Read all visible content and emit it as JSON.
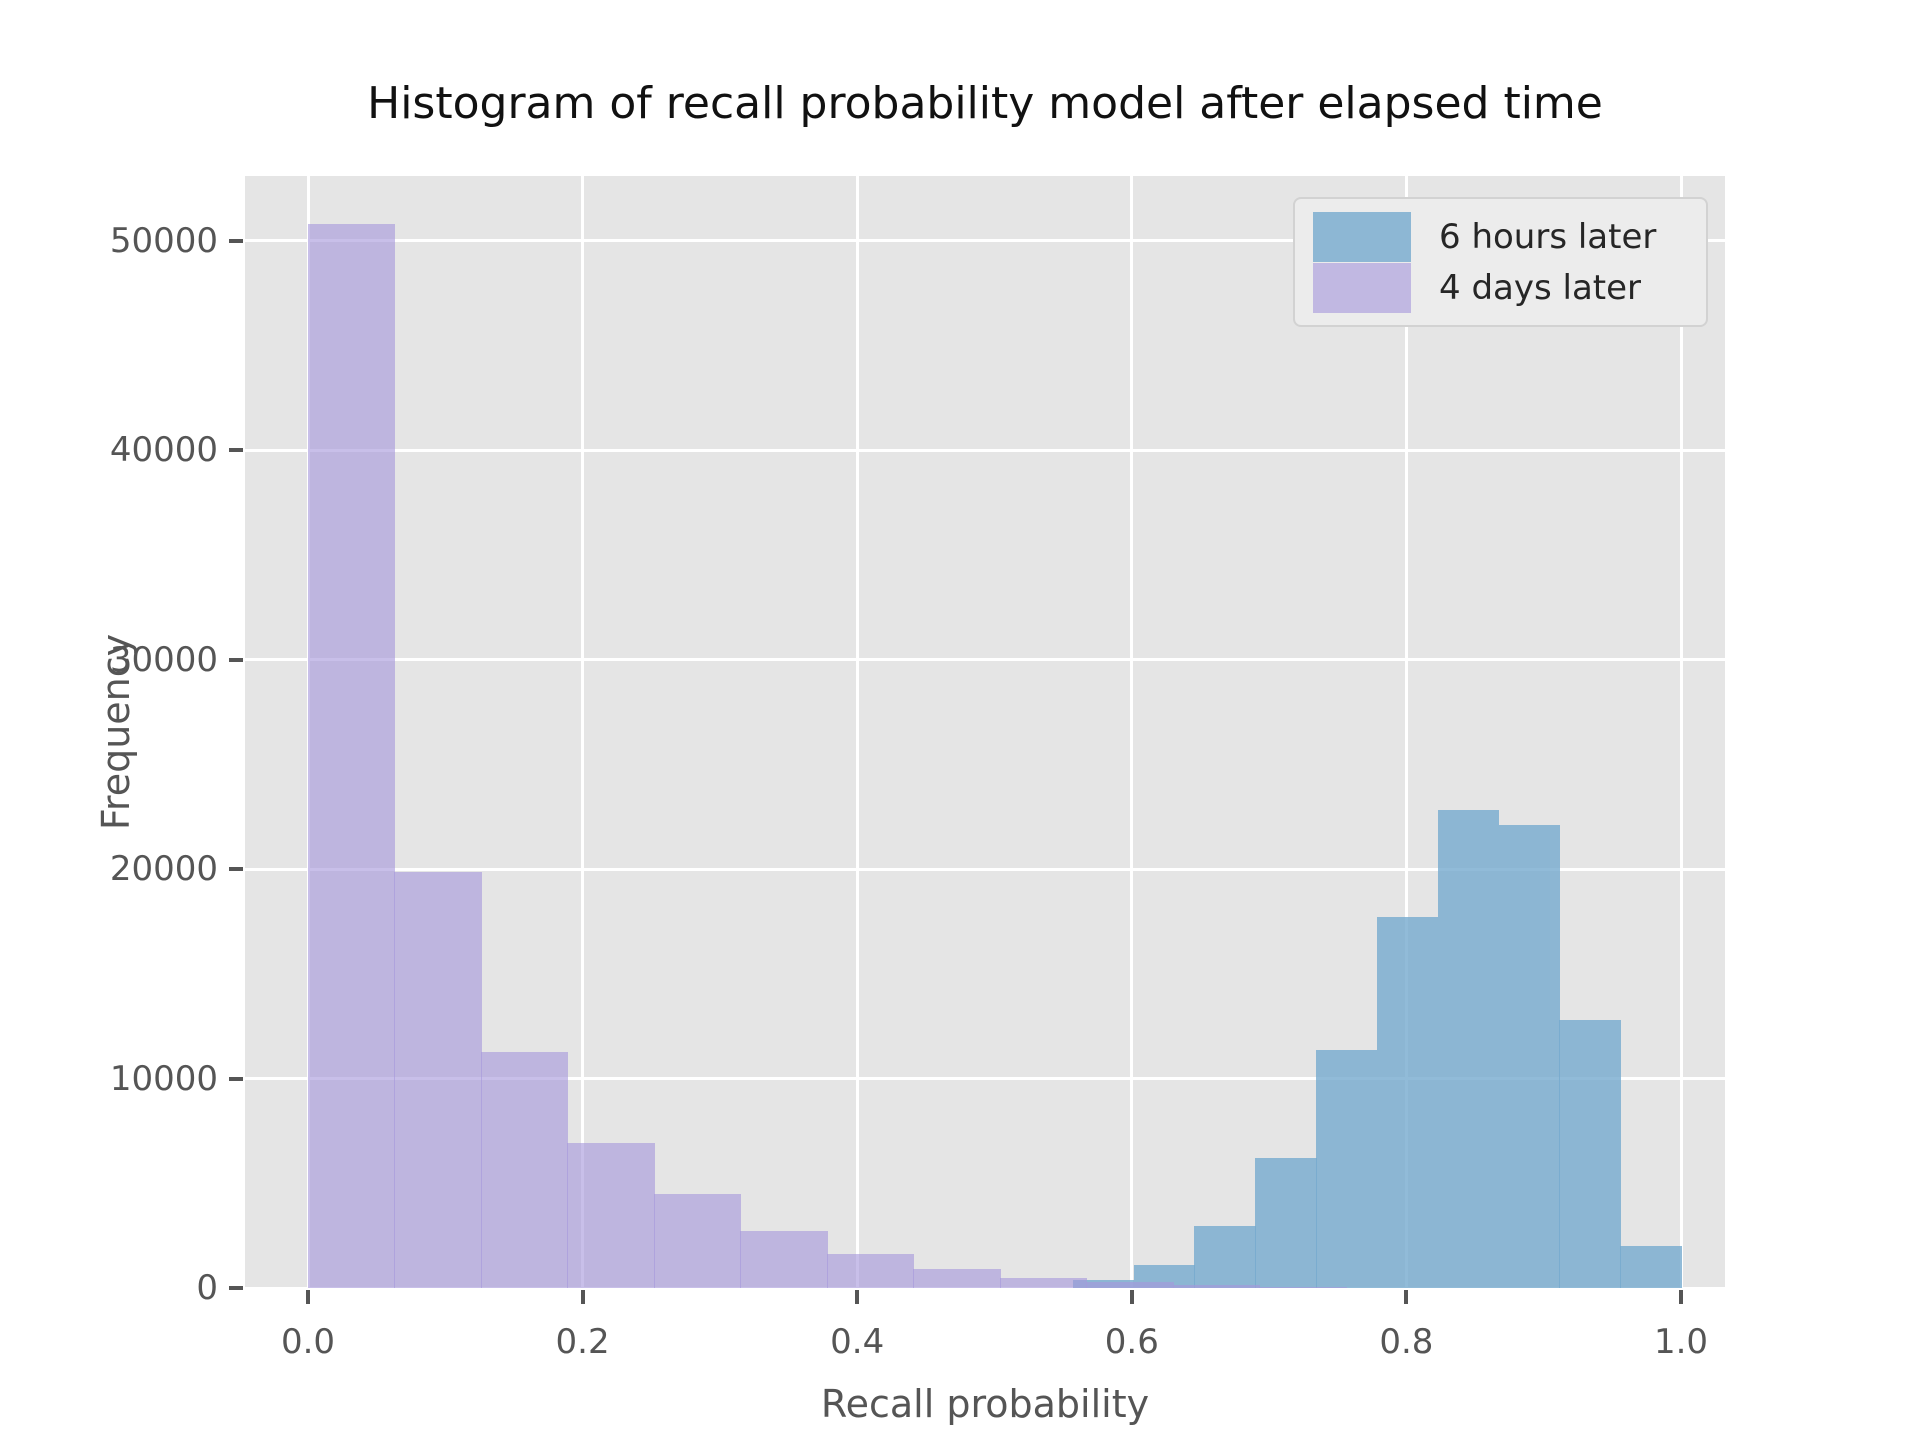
{
  "title": "Histogram of recall probability model after elapsed time",
  "xlabel": "Recall probability",
  "ylabel": "Frequency",
  "legend": {
    "entries": [
      {
        "label": "6 hours later",
        "color": "rgba(118,170,206,0.8)"
      },
      {
        "label": "4 days later",
        "color": "rgba(166,152,220,0.62)"
      }
    ]
  },
  "axes": {
    "xticks": [
      {
        "label": "0.0",
        "value": 0.0
      },
      {
        "label": "0.2",
        "value": 0.2
      },
      {
        "label": "0.4",
        "value": 0.4
      },
      {
        "label": "0.6",
        "value": 0.6
      },
      {
        "label": "0.8",
        "value": 0.8
      },
      {
        "label": "1.0",
        "value": 1.0
      }
    ],
    "yticks": [
      {
        "label": "0",
        "value": 0
      },
      {
        "label": "10000",
        "value": 10000
      },
      {
        "label": "20000",
        "value": 20000
      },
      {
        "label": "30000",
        "value": 30000
      },
      {
        "label": "40000",
        "value": 40000
      },
      {
        "label": "50000",
        "value": 50000
      }
    ]
  },
  "chart_data": {
    "type": "bar",
    "subtype": "overlapping-histograms",
    "title": "Histogram of recall probability model after elapsed time",
    "xlabel": "Recall probability",
    "ylabel": "Frequency",
    "xlim": [
      -0.046,
      1.032
    ],
    "ylim": [
      0,
      53100
    ],
    "grid": true,
    "plot_bg": "#e5e5e5",
    "legend_position": "upper right",
    "series": [
      {
        "name": "6 hours later",
        "color": "rgba(118,170,206,0.8)",
        "solid_color_over_bg": "#8cb6d3",
        "z": 2,
        "bin_edges": [
          0.557,
          0.6013,
          0.6456,
          0.6899,
          0.7342,
          0.7785,
          0.8228,
          0.8671,
          0.9114,
          0.9557,
          1.0
        ],
        "counts": [
          400,
          1100,
          2950,
          6200,
          11350,
          17700,
          22800,
          22100,
          12800,
          2000
        ]
      },
      {
        "name": "4 days later",
        "color": "rgba(166,152,220,0.62)",
        "solid_color_over_bg": "#bfb7e0",
        "z": 3,
        "bin_edges": [
          0.0,
          0.063,
          0.126,
          0.189,
          0.252,
          0.315,
          0.378,
          0.441,
          0.504,
          0.567,
          0.63,
          0.693,
          0.756
        ],
        "counts": [
          50800,
          19850,
          11250,
          6900,
          4500,
          2700,
          1600,
          900,
          500,
          300,
          130,
          60
        ]
      }
    ]
  }
}
